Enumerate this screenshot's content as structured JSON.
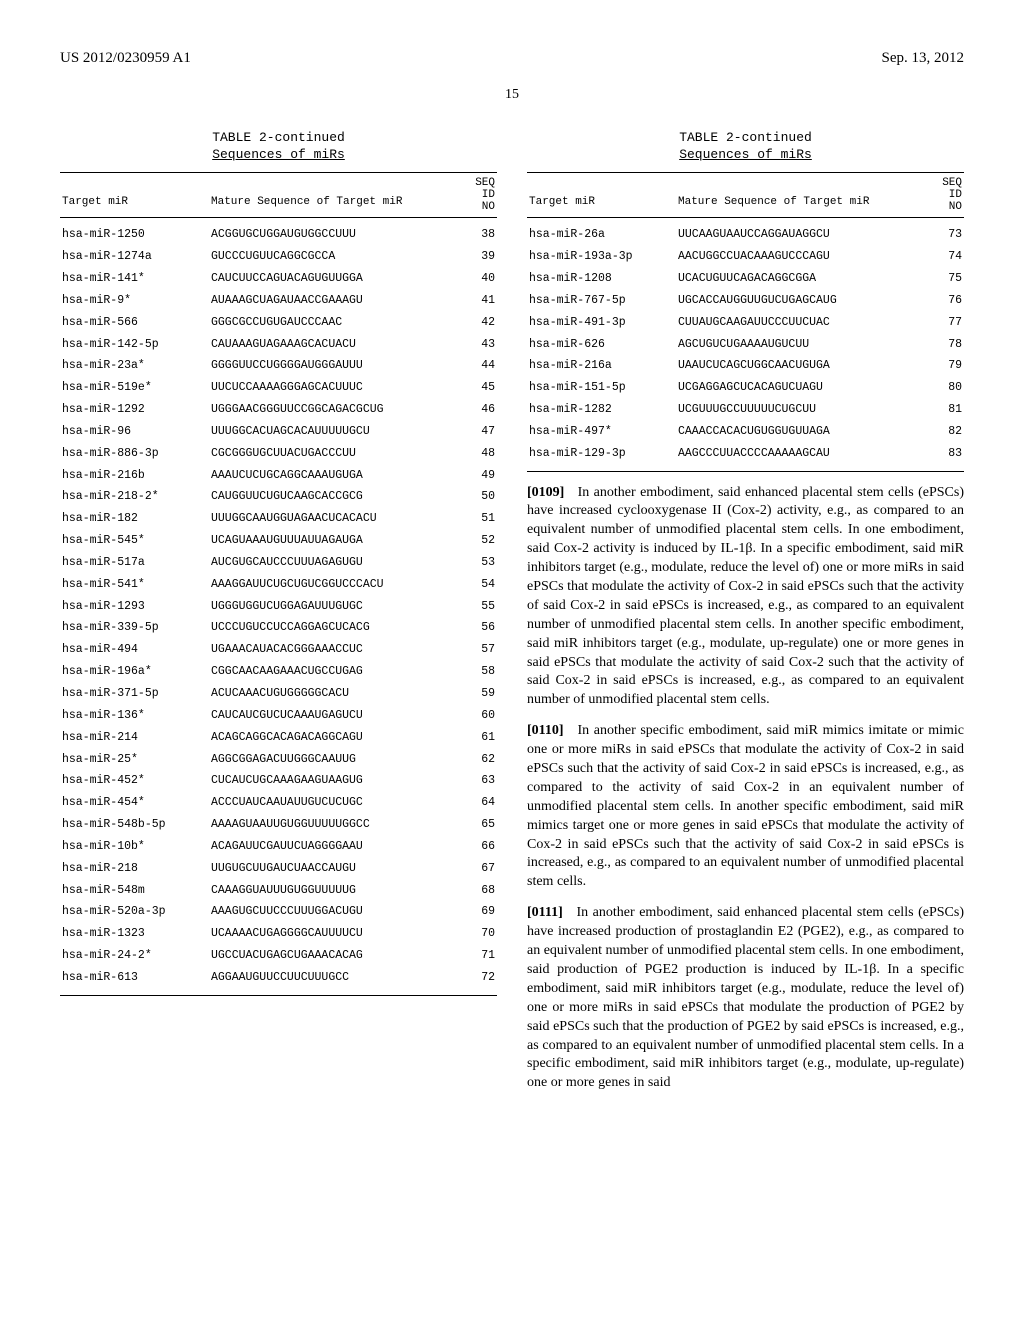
{
  "header": {
    "left": "US 2012/0230959 A1",
    "right": "Sep. 13, 2012"
  },
  "page_number": "15",
  "left_table": {
    "caption": "TABLE 2-continued",
    "subcaption": "Sequences of miRs",
    "col1": "Target miR",
    "col2": "Mature Sequence of Target miR",
    "col3_a": "SEQ",
    "col3_b": "ID",
    "col3_c": "NO",
    "rows": [
      {
        "a": "hsa-miR-1250",
        "b": "ACGGUGCUGGAUGUGGCCUUU",
        "c": "38"
      },
      {
        "a": "hsa-miR-1274a",
        "b": "GUCCCUGUUCAGGCGCCA",
        "c": "39"
      },
      {
        "a": "hsa-miR-141*",
        "b": "CAUCUUCCAGUACAGUGUUGGA",
        "c": "40"
      },
      {
        "a": "hsa-miR-9*",
        "b": "AUAAAGCUAGAUAACCGAAAGU",
        "c": "41"
      },
      {
        "a": "hsa-miR-566",
        "b": "GGGCGCCUGUGAUCCCAAC",
        "c": "42"
      },
      {
        "a": "hsa-miR-142-5p",
        "b": "CAUAAAGUAGAAAGCACUACU",
        "c": "43"
      },
      {
        "a": "hsa-miR-23a*",
        "b": "GGGGUUCCUGGGGAUGGGAUUU",
        "c": "44"
      },
      {
        "a": "hsa-miR-519e*",
        "b": "UUCUCCAAAAGGGAGCACUUUC",
        "c": "45"
      },
      {
        "a": "hsa-miR-1292",
        "b": "UGGGAACGGGUUCCGGCAGACGCUG",
        "c": "46"
      },
      {
        "a": "hsa-miR-96",
        "b": "UUUGGCACUAGCACAUUUUUGCU",
        "c": "47"
      },
      {
        "a": "hsa-miR-886-3p",
        "b": "CGCGGGUGCUUACUGACCCUU",
        "c": "48"
      },
      {
        "a": "hsa-miR-216b",
        "b": "AAAUCUCUGCAGGCAAAUGUGA",
        "c": "49"
      },
      {
        "a": "hsa-miR-218-2*",
        "b": "CAUGGUUCUGUCAAGCACCGCG",
        "c": "50"
      },
      {
        "a": "hsa-miR-182",
        "b": "UUUGGCAAUGGUAGAACUCACACU",
        "c": "51"
      },
      {
        "a": "hsa-miR-545*",
        "b": "UCAGUAAAUGUUUAUUAGAUGA",
        "c": "52"
      },
      {
        "a": "hsa-miR-517a",
        "b": "AUCGUGCAUCCCUUUAGAGUGU",
        "c": "53"
      },
      {
        "a": "hsa-miR-541*",
        "b": "AAAGGAUUCUGCUGUCGGUCCCACU",
        "c": "54"
      },
      {
        "a": "hsa-miR-1293",
        "b": "UGGGUGGUCUGGAGAUUUGUGC",
        "c": "55"
      },
      {
        "a": "hsa-miR-339-5p",
        "b": "UCCCUGUCCUCCAGGAGCUCACG",
        "c": "56"
      },
      {
        "a": "hsa-miR-494",
        "b": "UGAAACAUACACGGGAAACCUC",
        "c": "57"
      },
      {
        "a": "hsa-miR-196a*",
        "b": "CGGCAACAAGAAACUGCCUGAG",
        "c": "58"
      },
      {
        "a": "hsa-miR-371-5p",
        "b": "ACUCAAACUGUGGGGGCACU",
        "c": "59"
      },
      {
        "a": "hsa-miR-136*",
        "b": "CAUCAUCGUCUCAAAUGAGUCU",
        "c": "60"
      },
      {
        "a": "hsa-miR-214",
        "b": "ACAGCAGGCACAGACAGGCAGU",
        "c": "61"
      },
      {
        "a": "hsa-miR-25*",
        "b": "AGGCGGAGACUUGGGCAAUUG",
        "c": "62"
      },
      {
        "a": "hsa-miR-452*",
        "b": "CUCAUCUGCAAAGAAGUAAGUG",
        "c": "63"
      },
      {
        "a": "hsa-miR-454*",
        "b": "ACCCUAUCAAUAUUGUCUCUGC",
        "c": "64"
      },
      {
        "a": "hsa-miR-548b-5p",
        "b": "AAAAGUAAUUGUGGUUUUUGGCC",
        "c": "65"
      },
      {
        "a": "hsa-miR-10b*",
        "b": "ACAGAUUCGAUUCUAGGGGAAU",
        "c": "66"
      },
      {
        "a": "hsa-miR-218",
        "b": "UUGUGCUUGAUCUAACCAUGU",
        "c": "67"
      },
      {
        "a": "hsa-miR-548m",
        "b": "CAAAGGUAUUUGUGGUUUUUG",
        "c": "68"
      },
      {
        "a": "hsa-miR-520a-3p",
        "b": "AAAGUGCUUCCCUUUGGACUGU",
        "c": "69"
      },
      {
        "a": "hsa-miR-1323",
        "b": "UCAAAACUGAGGGGCAUUUUCU",
        "c": "70"
      },
      {
        "a": "hsa-miR-24-2*",
        "b": "UGCCUACUGAGCUGAAACACAG",
        "c": "71"
      },
      {
        "a": "hsa-miR-613",
        "b": "AGGAAUGUUCCUUCUUUGCC",
        "c": "72"
      }
    ]
  },
  "right_table": {
    "caption": "TABLE 2-continued",
    "subcaption": "Sequences of miRs",
    "col1": "Target miR",
    "col2": "Mature Sequence of Target miR",
    "col3_a": "SEQ",
    "col3_b": "ID",
    "col3_c": "NO",
    "rows": [
      {
        "a": "hsa-miR-26a",
        "b": "UUCAAGUAAUCCAGGAUAGGCU",
        "c": "73"
      },
      {
        "a": "hsa-miR-193a-3p",
        "b": "AACUGGCCUACAAAGUCCCAGU",
        "c": "74"
      },
      {
        "a": "hsa-miR-1208",
        "b": "UCACUGUUCAGACAGGCGGA",
        "c": "75"
      },
      {
        "a": "hsa-miR-767-5p",
        "b": "UGCACCAUGGUUGUCUGAGCAUG",
        "c": "76"
      },
      {
        "a": "hsa-miR-491-3p",
        "b": "CUUAUGCAAGAUUCCCUUCUAC",
        "c": "77"
      },
      {
        "a": "hsa-miR-626",
        "b": "AGCUGUCUGAAAAUGUCUU",
        "c": "78"
      },
      {
        "a": "hsa-miR-216a",
        "b": "UAAUCUCAGCUGGCAACUGUGA",
        "c": "79"
      },
      {
        "a": "hsa-miR-151-5p",
        "b": "UCGAGGAGCUCACAGUCUAGU",
        "c": "80"
      },
      {
        "a": "hsa-miR-1282",
        "b": "UCGUUUGCCUUUUUCUGCUU",
        "c": "81"
      },
      {
        "a": "hsa-miR-497*",
        "b": "CAAACCACACUGUGGUGUUAGA",
        "c": "82"
      },
      {
        "a": "hsa-miR-129-3p",
        "b": "AAGCCCUUACCCCAAAAAGCAU",
        "c": "83"
      }
    ]
  },
  "paragraphs": [
    {
      "num": "[0109]",
      "text": "In another embodiment, said enhanced placental stem cells (ePSCs) have increased cyclooxygenase II (Cox-2) activity, e.g., as compared to an equivalent number of unmodified placental stem cells. In one embodiment, said Cox-2 activity is induced by IL-1β. In a specific embodiment, said miR inhibitors target (e.g., modulate, reduce the level of) one or more miRs in said ePSCs that modulate the activity of Cox-2 in said ePSCs such that the activity of said Cox-2 in said ePSCs is increased, e.g., as compared to an equivalent number of unmodified placental stem cells. In another specific embodiment, said miR inhibitors target (e.g., modulate, up-regulate) one or more genes in said ePSCs that modulate the activity of said Cox-2 such that the activity of said Cox-2 in said ePSCs is increased, e.g., as compared to an equivalent number of unmodified placental stem cells."
    },
    {
      "num": "[0110]",
      "text": "In another specific embodiment, said miR mimics imitate or mimic one or more miRs in said ePSCs that modulate the activity of Cox-2 in said ePSCs such that the activity of said Cox-2 in said ePSCs is increased, e.g., as compared to the activity of said Cox-2 in an equivalent number of unmodified placental stem cells. In another specific embodiment, said miR mimics target one or more genes in said ePSCs that modulate the activity of Cox-2 in said ePSCs such that the activity of said Cox-2 in said ePSCs is increased, e.g., as compared to an equivalent number of unmodified placental stem cells."
    },
    {
      "num": "[0111]",
      "text": "In another embodiment, said enhanced placental stem cells (ePSCs) have increased production of prostaglandin E2 (PGE2), e.g., as compared to an equivalent number of unmodified placental stem cells. In one embodiment, said production of PGE2 production is induced by IL-1β. In a specific embodiment, said miR inhibitors target (e.g., modulate, reduce the level of) one or more miRs in said ePSCs that modulate the production of PGE2 by said ePSCs such that the production of PGE2 by said ePSCs is increased, e.g., as compared to an equivalent number of unmodified placental stem cells. In a specific embodiment, said miR inhibitors target (e.g., modulate, up-regulate) one or more genes in said"
    }
  ]
}
